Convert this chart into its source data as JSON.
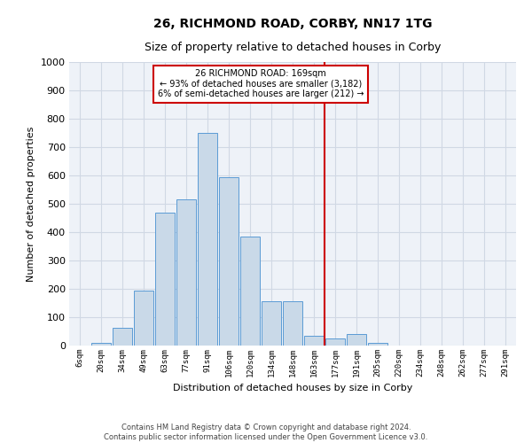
{
  "title": "26, RICHMOND ROAD, CORBY, NN17 1TG",
  "subtitle": "Size of property relative to detached houses in Corby",
  "xlabel": "Distribution of detached houses by size in Corby",
  "ylabel": "Number of detached properties",
  "footer_line1": "Contains HM Land Registry data © Crown copyright and database right 2024.",
  "footer_line2": "Contains public sector information licensed under the Open Government Licence v3.0.",
  "annotation_title": "26 RICHMOND ROAD: 169sqm",
  "annotation_line1": "← 93% of detached houses are smaller (3,182)",
  "annotation_line2": "6% of semi-detached houses are larger (212) →",
  "bar_labels": [
    "6sqm",
    "20sqm",
    "34sqm",
    "49sqm",
    "63sqm",
    "77sqm",
    "91sqm",
    "106sqm",
    "120sqm",
    "134sqm",
    "148sqm",
    "163sqm",
    "177sqm",
    "191sqm",
    "205sqm",
    "220sqm",
    "234sqm",
    "248sqm",
    "262sqm",
    "277sqm",
    "291sqm"
  ],
  "bar_values": [
    0,
    10,
    63,
    195,
    470,
    515,
    750,
    595,
    385,
    155,
    155,
    35,
    25,
    40,
    10,
    0,
    0,
    0,
    0,
    0,
    0
  ],
  "vline_after_index": 11,
  "bar_color": "#c9d9e8",
  "bar_edgecolor": "#5b9bd5",
  "vline_color": "#cc0000",
  "annotation_box_edgecolor": "#cc0000",
  "annotation_box_facecolor": "#ffffff",
  "grid_color": "#d0d8e4",
  "bg_color": "#eef2f8",
  "ylim_max": 1000,
  "yticks": [
    0,
    100,
    200,
    300,
    400,
    500,
    600,
    700,
    800,
    900,
    1000
  ],
  "title_fontsize": 10,
  "subtitle_fontsize": 9,
  "xlabel_fontsize": 8,
  "ylabel_fontsize": 8,
  "tick_fontsize": 8,
  "xtick_fontsize": 6.5,
  "footer_fontsize": 6
}
